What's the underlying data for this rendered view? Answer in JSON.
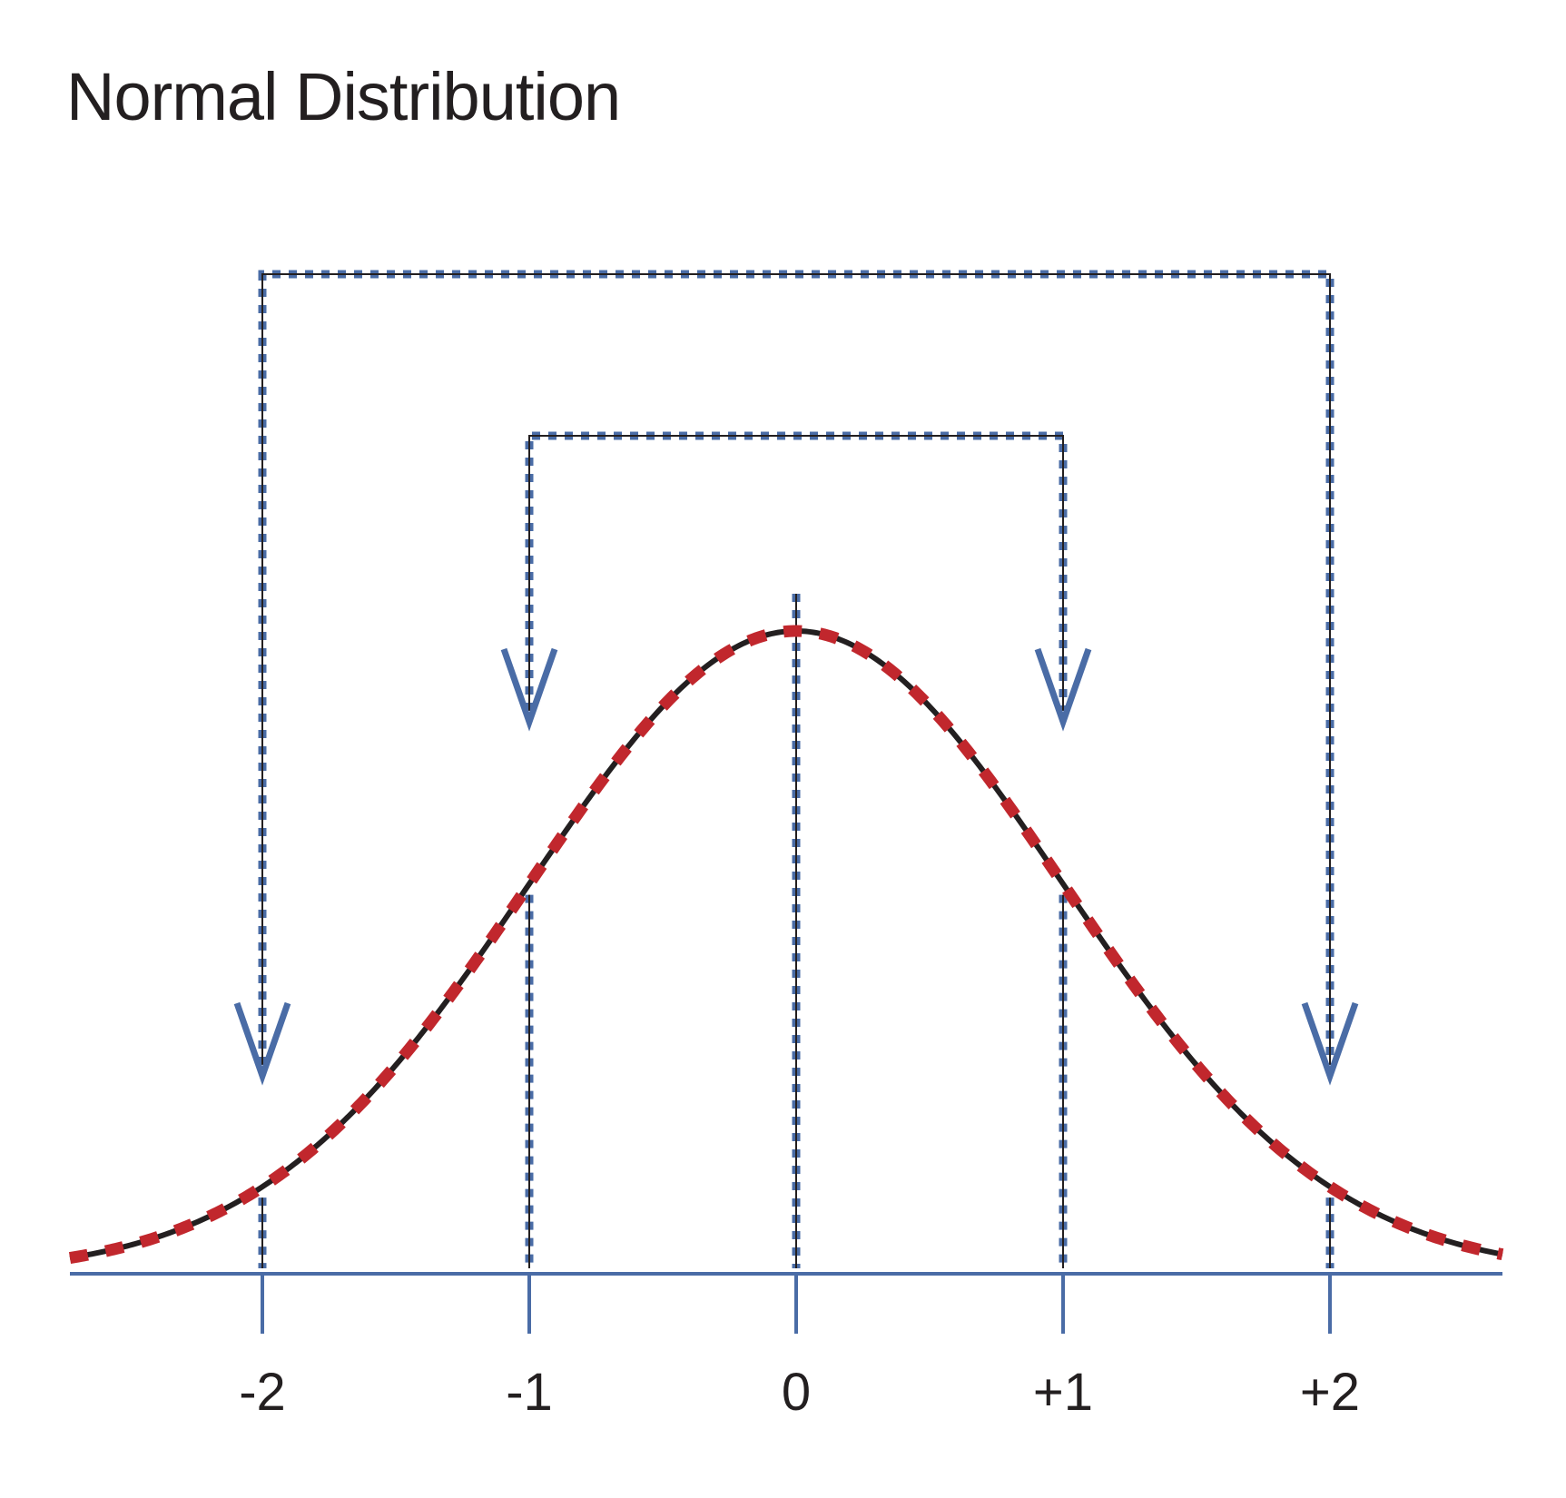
{
  "title": "Normal Distribution",
  "colors": {
    "curve_base": "#231f20",
    "curve_dash": "#c1272d",
    "connector": "#4a6ca6",
    "connector_core": "#231f20",
    "axis": "#4a6ca6",
    "text": "#231f20"
  },
  "axis": {
    "ticks": [
      {
        "value": -2,
        "label": "-2"
      },
      {
        "value": -1,
        "label": "-1"
      },
      {
        "value": 0,
        "label": "0"
      },
      {
        "value": 1,
        "label": "+1"
      },
      {
        "value": 2,
        "label": "+2"
      }
    ]
  },
  "brackets": [
    {
      "from": -1,
      "to": 1
    },
    {
      "from": -2,
      "to": 2
    }
  ],
  "curve": {
    "distribution": "normal",
    "mean": 0,
    "sd": 1
  }
}
